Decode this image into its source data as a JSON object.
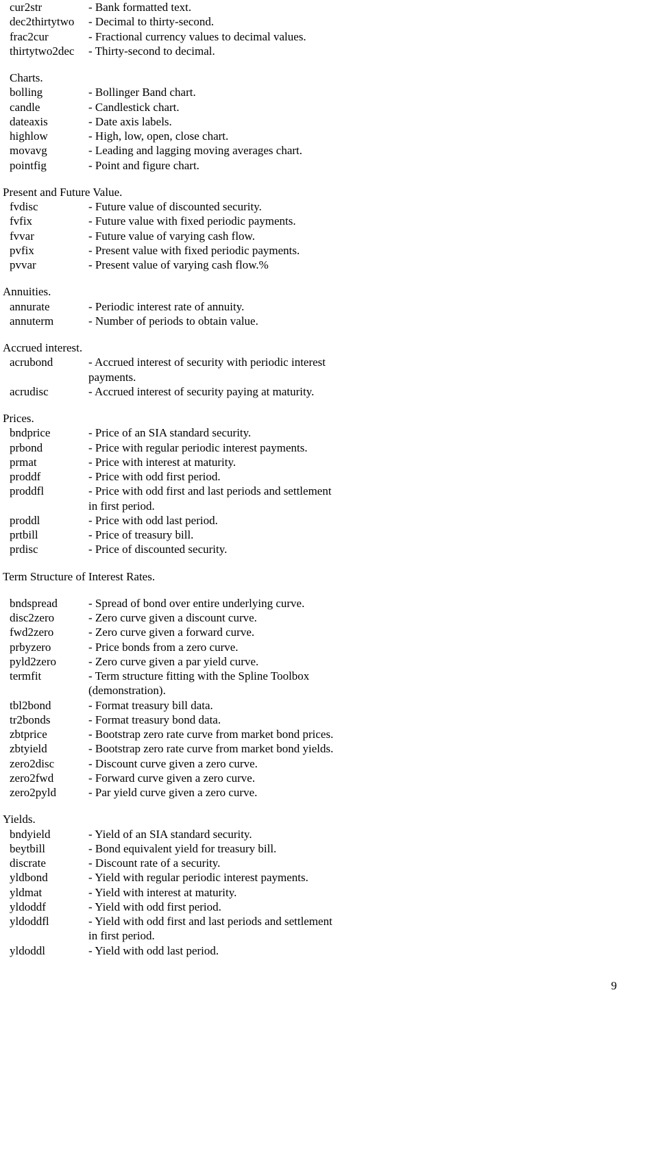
{
  "sections": [
    {
      "header": null,
      "header_indent": false,
      "entries": [
        {
          "term": "cur2str",
          "desc": "- Bank formatted text."
        },
        {
          "term": "dec2thirtytwo",
          "desc": "- Decimal to thirty-second."
        },
        {
          "term": "frac2cur",
          "desc": "- Fractional currency values to decimal values."
        },
        {
          "term": "thirtytwo2dec",
          "desc": "- Thirty-second to decimal."
        }
      ]
    },
    {
      "header": "Charts.",
      "header_indent": true,
      "entries": [
        {
          "term": "bolling",
          "desc": "- Bollinger Band chart."
        },
        {
          "term": "candle",
          "desc": "- Candlestick chart."
        },
        {
          "term": "dateaxis",
          "desc": "- Date axis labels."
        },
        {
          "term": "highlow",
          "desc": "- High, low, open, close chart."
        },
        {
          "term": "movavg",
          "desc": "- Leading and lagging moving averages chart."
        },
        {
          "term": "pointfig",
          "desc": "- Point and figure chart."
        }
      ]
    },
    {
      "header": "Present and Future Value.",
      "header_indent": false,
      "entries": [
        {
          "term": "fvdisc",
          "desc": "- Future value of discounted security."
        },
        {
          "term": "fvfix",
          "desc": "- Future value with fixed periodic payments."
        },
        {
          "term": "fvvar",
          "desc": "- Future value of varying cash flow."
        },
        {
          "term": "pvfix",
          "desc": "- Present value with fixed periodic payments."
        },
        {
          "term": "pvvar",
          "desc": "- Present value of varying cash flow.%"
        }
      ]
    },
    {
      "header": "Annuities.",
      "header_indent": false,
      "entries": [
        {
          "term": "annurate",
          "desc": "- Periodic interest rate of annuity."
        },
        {
          "term": "annuterm",
          "desc": "- Number of periods to obtain value."
        }
      ]
    },
    {
      "header": "Accrued interest.",
      "header_indent": false,
      "entries": [
        {
          "term": "acrubond",
          "desc": "- Accrued interest of security with periodic interest",
          "continuation": "payments."
        },
        {
          "term": "acrudisc",
          "desc": "- Accrued interest of security paying at maturity."
        }
      ]
    },
    {
      "header": "Prices.",
      "header_indent": false,
      "entries": [
        {
          "term": "bndprice",
          "desc": "- Price of an SIA standard security."
        },
        {
          "term": "prbond",
          "desc": "- Price with regular periodic interest payments."
        },
        {
          "term": "prmat",
          "desc": "- Price with interest at maturity."
        },
        {
          "term": "proddf",
          "desc": "- Price with odd first period."
        },
        {
          "term": "proddfl",
          "desc": "- Price with odd first and last periods and settlement",
          "continuation": "in first period."
        },
        {
          "term": "proddl",
          "desc": "- Price with odd last period."
        },
        {
          "term": "prtbill",
          "desc": "- Price of treasury bill."
        },
        {
          "term": "prdisc",
          "desc": "- Price of discounted security."
        }
      ]
    },
    {
      "header": "Term Structure of Interest Rates.",
      "header_indent": false,
      "blank_after_header": true,
      "entries": [
        {
          "term": "bndspread",
          "desc": "- Spread of bond over entire underlying curve."
        },
        {
          "term": "disc2zero",
          "desc": "- Zero curve given a discount curve."
        },
        {
          "term": "fwd2zero",
          "desc": "- Zero curve given a forward curve."
        },
        {
          "term": "prbyzero",
          "desc": "- Price bonds from a zero curve."
        },
        {
          "term": "pyld2zero",
          "desc": "- Zero curve given a par yield curve."
        },
        {
          "term": "termfit",
          "desc": "- Term structure fitting with the Spline Toolbox",
          "continuation": "(demonstration)."
        },
        {
          "term": "tbl2bond",
          "desc": "- Format treasury bill data."
        },
        {
          "term": "tr2bonds",
          "desc": "- Format treasury bond data."
        },
        {
          "term": "zbtprice",
          "desc": "- Bootstrap zero rate curve from market bond prices."
        },
        {
          "term": "zbtyield",
          "desc": "- Bootstrap zero rate curve from market bond yields."
        },
        {
          "term": "zero2disc",
          "desc": "- Discount curve given a zero curve."
        },
        {
          "term": "zero2fwd",
          "desc": "- Forward curve given a zero curve."
        },
        {
          "term": "zero2pyld",
          "desc": "- Par yield curve given a zero curve."
        }
      ]
    },
    {
      "header": "Yields.",
      "header_indent": false,
      "entries": [
        {
          "term": "bndyield",
          "desc": "- Yield of an SIA standard security."
        },
        {
          "term": "beytbill",
          "desc": "- Bond equivalent yield for treasury bill."
        },
        {
          "term": "discrate",
          "desc": "- Discount rate of a security."
        },
        {
          "term": "yldbond",
          "desc": "- Yield with regular periodic interest payments."
        },
        {
          "term": "yldmat",
          "desc": "- Yield with interest at maturity."
        },
        {
          "term": "yldoddf",
          "desc": "- Yield with odd first period."
        },
        {
          "term": "yldoddfl",
          "desc": "- Yield with odd first and last periods and settlement",
          "continuation": "in first period."
        },
        {
          "term": "yldoddl",
          "desc": "- Yield with odd last period."
        }
      ]
    }
  ],
  "page_number": "9"
}
